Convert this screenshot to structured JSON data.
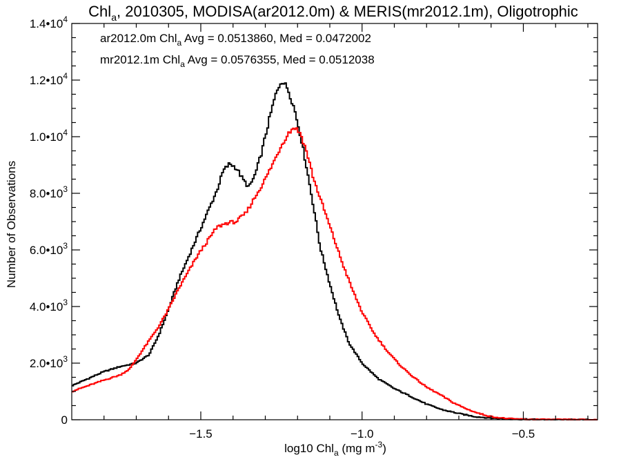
{
  "chart_data": {
    "type": "line",
    "title": {
      "prefix": "Chl",
      "subscript": "a",
      "rest": ", 2010305, MODISA(ar2012.0m) & MERIS(mr2012.1m), Oligotrophic"
    },
    "xlabel": {
      "prefix": "log10 Chl",
      "subscript": "a",
      "unit_prefix": " (mg m",
      "unit_sup": "-3",
      "unit_suffix": ")"
    },
    "ylabel": "Number of Observations",
    "xlim": [
      -1.9,
      -0.27
    ],
    "ylim": [
      0,
      14000
    ],
    "x_ticks": [
      {
        "value": -1.5,
        "label": "-1.5"
      },
      {
        "value": -1.0,
        "label": "-1.0"
      },
      {
        "value": -0.5,
        "label": "-0.5"
      }
    ],
    "x_minor_step": 0.1,
    "y_ticks": [
      {
        "value": 0,
        "mant": "0",
        "exp": ""
      },
      {
        "value": 2000,
        "mant": "2.0•10",
        "exp": "3"
      },
      {
        "value": 4000,
        "mant": "4.0•10",
        "exp": "3"
      },
      {
        "value": 6000,
        "mant": "6.0•10",
        "exp": "3"
      },
      {
        "value": 8000,
        "mant": "8.0•10",
        "exp": "3"
      },
      {
        "value": 10000,
        "mant": "1.0•10",
        "exp": "4"
      },
      {
        "value": 12000,
        "mant": "1.2•10",
        "exp": "4"
      },
      {
        "value": 14000,
        "mant": "1.4•10",
        "exp": "4"
      }
    ],
    "y_minor_step": 500,
    "grid": false,
    "legend_position": "top-left",
    "series": [
      {
        "legend": {
          "prefix": "ar2012.0m Chl",
          "subscript": "a",
          "stats": " Avg = 0.0513860, Med = 0.0472002"
        },
        "color": "#000000",
        "points": [
          [
            -1.9,
            1200
          ],
          [
            -1.85,
            1450
          ],
          [
            -1.8,
            1700
          ],
          [
            -1.75,
            1880
          ],
          [
            -1.7,
            2000
          ],
          [
            -1.66,
            2300
          ],
          [
            -1.63,
            3000
          ],
          [
            -1.6,
            3900
          ],
          [
            -1.57,
            4900
          ],
          [
            -1.54,
            5700
          ],
          [
            -1.51,
            6500
          ],
          [
            -1.48,
            7300
          ],
          [
            -1.45,
            8100
          ],
          [
            -1.43,
            8800
          ],
          [
            -1.41,
            9050
          ],
          [
            -1.39,
            8900
          ],
          [
            -1.37,
            8500
          ],
          [
            -1.35,
            8200
          ],
          [
            -1.33,
            8700
          ],
          [
            -1.31,
            9500
          ],
          [
            -1.29,
            10500
          ],
          [
            -1.27,
            11400
          ],
          [
            -1.25,
            12000
          ],
          [
            -1.23,
            11700
          ],
          [
            -1.21,
            11000
          ],
          [
            -1.19,
            10000
          ],
          [
            -1.17,
            8800
          ],
          [
            -1.15,
            7500
          ],
          [
            -1.13,
            6100
          ],
          [
            -1.1,
            4800
          ],
          [
            -1.07,
            3600
          ],
          [
            -1.04,
            2700
          ],
          [
            -1.0,
            2000
          ],
          [
            -0.95,
            1450
          ],
          [
            -0.9,
            1100
          ],
          [
            -0.85,
            830
          ],
          [
            -0.8,
            550
          ],
          [
            -0.75,
            350
          ],
          [
            -0.7,
            220
          ],
          [
            -0.65,
            110
          ],
          [
            -0.6,
            60
          ],
          [
            -0.55,
            30
          ],
          [
            -0.5,
            15
          ],
          [
            -0.4,
            5
          ],
          [
            -0.27,
            0
          ]
        ]
      },
      {
        "legend": {
          "prefix": "mr2012.1m Chl",
          "subscript": "a",
          "stats": " Avg = 0.0576355, Med = 0.0512038"
        },
        "color": "#ff0000",
        "points": [
          [
            -1.9,
            1000
          ],
          [
            -1.85,
            1200
          ],
          [
            -1.8,
            1400
          ],
          [
            -1.75,
            1580
          ],
          [
            -1.72,
            1800
          ],
          [
            -1.69,
            2300
          ],
          [
            -1.66,
            2800
          ],
          [
            -1.63,
            3300
          ],
          [
            -1.6,
            3900
          ],
          [
            -1.57,
            4600
          ],
          [
            -1.54,
            5200
          ],
          [
            -1.51,
            5800
          ],
          [
            -1.48,
            6300
          ],
          [
            -1.45,
            6800
          ],
          [
            -1.42,
            6950
          ],
          [
            -1.39,
            7000
          ],
          [
            -1.36,
            7300
          ],
          [
            -1.33,
            7900
          ],
          [
            -1.3,
            8500
          ],
          [
            -1.27,
            9200
          ],
          [
            -1.25,
            9700
          ],
          [
            -1.23,
            10100
          ],
          [
            -1.21,
            10350
          ],
          [
            -1.19,
            10100
          ],
          [
            -1.17,
            9400
          ],
          [
            -1.15,
            8500
          ],
          [
            -1.12,
            7500
          ],
          [
            -1.09,
            6500
          ],
          [
            -1.06,
            5500
          ],
          [
            -1.03,
            4600
          ],
          [
            -1.0,
            3800
          ],
          [
            -0.96,
            3000
          ],
          [
            -0.92,
            2400
          ],
          [
            -0.88,
            1900
          ],
          [
            -0.84,
            1500
          ],
          [
            -0.8,
            1150
          ],
          [
            -0.76,
            900
          ],
          [
            -0.72,
            620
          ],
          [
            -0.68,
            400
          ],
          [
            -0.64,
            230
          ],
          [
            -0.6,
            110
          ],
          [
            -0.55,
            40
          ],
          [
            -0.5,
            15
          ],
          [
            -0.4,
            5
          ],
          [
            -0.27,
            0
          ]
        ]
      }
    ]
  }
}
